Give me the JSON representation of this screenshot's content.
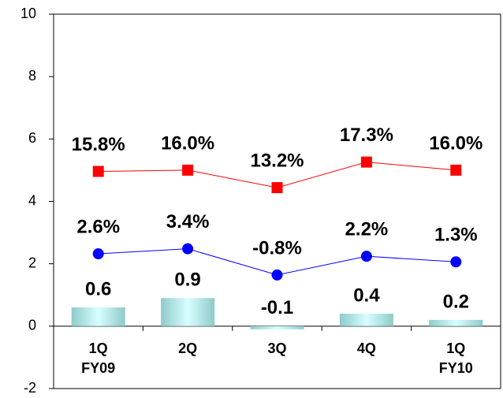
{
  "chart_data": {
    "type": "bar",
    "categories": [
      "1Q\nFY09",
      "2Q",
      "3Q",
      "4Q",
      "1Q\nFY10"
    ],
    "values": [
      0.6,
      0.9,
      -0.1,
      0.4,
      0.2
    ],
    "color": "#8fcaca",
    "ylim": [
      -2,
      10
    ],
    "yticks": [
      -2,
      0,
      2,
      4,
      6,
      8,
      10
    ],
    "y2lim": [
      -19,
      41
    ],
    "series": [
      {
        "type": "line",
        "axis": "y2",
        "color": "#ff0000",
        "marker": "square",
        "values": [
          15.8,
          16.0,
          13.2,
          17.3,
          16.0
        ],
        "value_labels": [
          "15.8%",
          "16.0%",
          "13.2%",
          "17.3%",
          "16.0%"
        ]
      },
      {
        "type": "line",
        "axis": "y2",
        "color": "#0000ff",
        "marker": "circle",
        "values": [
          2.6,
          3.4,
          -0.8,
          2.2,
          1.3
        ],
        "value_labels": [
          "2.6%",
          "3.4%",
          "-0.8%",
          "2.2%",
          "1.3%"
        ]
      }
    ]
  }
}
